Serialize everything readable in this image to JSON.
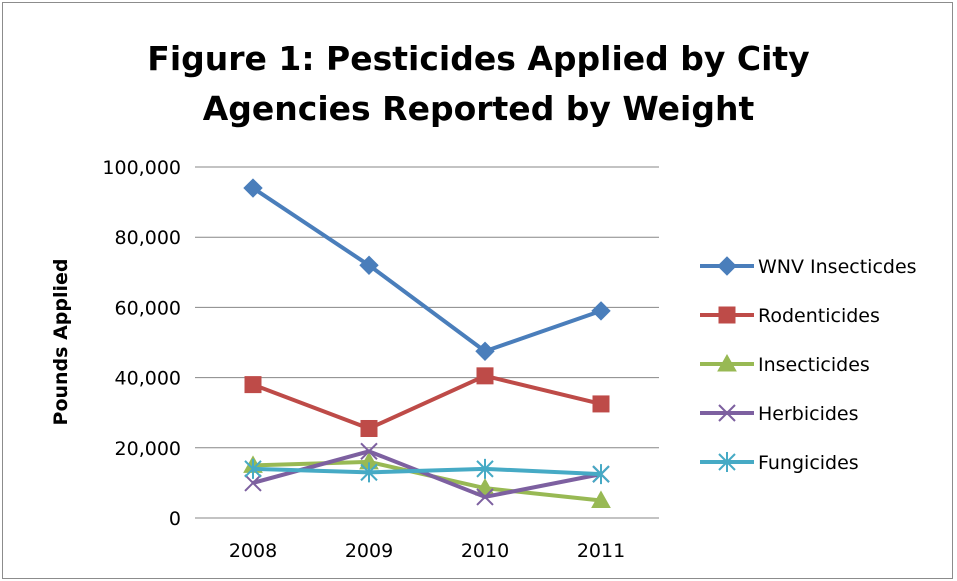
{
  "chart_data": {
    "type": "line",
    "title_line1": "Figure 1: Pesticides Applied by City",
    "title_line2": "Agencies Reported by Weight",
    "xlabel": "",
    "ylabel": "Pounds Applied",
    "categories": [
      "2008",
      "2009",
      "2010",
      "2011"
    ],
    "ylim": [
      0,
      100000
    ],
    "yticks": [
      "0",
      "20,000",
      "40,000",
      "60,000",
      "80,000",
      "100,000"
    ],
    "ytick_values": [
      0,
      20000,
      40000,
      60000,
      80000,
      100000
    ],
    "grid": true,
    "legend_position": "right",
    "series": [
      {
        "name": "WNV Insecticdes",
        "values": [
          94000,
          72000,
          47500,
          59000
        ],
        "color": "#4a7ebb",
        "marker": "diamond"
      },
      {
        "name": "Rodenticides",
        "values": [
          38000,
          25500,
          40500,
          32500
        ],
        "color": "#be4b48",
        "marker": "square"
      },
      {
        "name": "Insecticides",
        "values": [
          15000,
          16000,
          8500,
          5000
        ],
        "color": "#98b954",
        "marker": "triangle"
      },
      {
        "name": "Herbicides",
        "values": [
          10000,
          19000,
          6000,
          12500
        ],
        "color": "#7d60a0",
        "marker": "x"
      },
      {
        "name": "Fungicides",
        "values": [
          14000,
          13000,
          14000,
          12500
        ],
        "color": "#46aac5",
        "marker": "star"
      }
    ]
  }
}
